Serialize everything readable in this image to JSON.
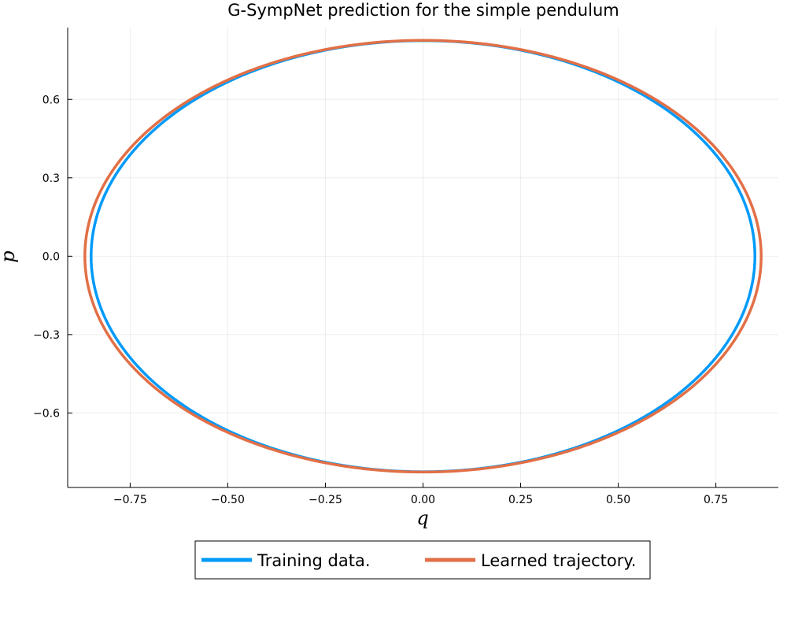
{
  "chart_data": {
    "type": "line",
    "title": "G-SympNet prediction for the simple pendulum",
    "xlabel": "q",
    "ylabel": "p",
    "xlim": [
      -0.91,
      0.91
    ],
    "ylim": [
      -0.885,
      0.875
    ],
    "xticks": [
      -0.75,
      -0.5,
      -0.25,
      0.0,
      0.25,
      0.5,
      0.75
    ],
    "xtick_labels": [
      "−0.75",
      "−0.50",
      "−0.25",
      "0.00",
      "0.25",
      "0.50",
      "0.75"
    ],
    "yticks": [
      -0.6,
      -0.3,
      0.0,
      0.3,
      0.6
    ],
    "ytick_labels": [
      "−0.6",
      "−0.3",
      "0.0",
      "0.3",
      "0.6"
    ],
    "grid": true,
    "legend_position": "bottom-outside",
    "series": [
      {
        "name": "Training data.",
        "color": "#009af9",
        "shape": "closed-orbit",
        "q_amplitude": 0.85,
        "p_amplitude": 0.825
      },
      {
        "name": "Learned trajectory.",
        "color": "#e26f46",
        "shape": "closed-orbit",
        "q_amplitude": 0.866,
        "p_amplitude": 0.826
      }
    ]
  }
}
